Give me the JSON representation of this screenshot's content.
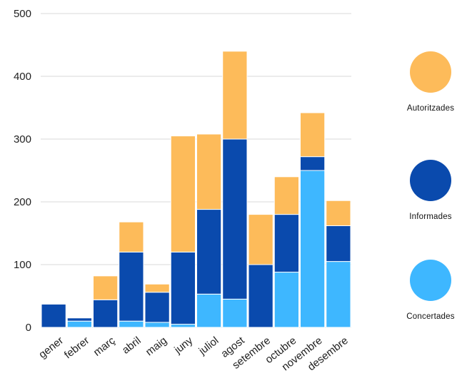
{
  "chart_data": {
    "type": "bar",
    "stacked": true,
    "title": "",
    "xlabel": "",
    "ylabel": "",
    "ylim": [
      0,
      500
    ],
    "yticks": [
      0,
      100,
      200,
      300,
      400,
      500
    ],
    "grid": true,
    "legend_position": "right",
    "categories": [
      "gener",
      "febrer",
      "març",
      "abril",
      "maig",
      "juny",
      "juliol",
      "agost",
      "setembre",
      "octubre",
      "novembre",
      "desembre"
    ],
    "series": [
      {
        "name": "Concertades",
        "color": "#3eb7ff",
        "values": [
          0,
          10,
          0,
          10,
          8,
          5,
          53,
          45,
          0,
          88,
          250,
          105
        ]
      },
      {
        "name": "Informades",
        "color": "#0a4aad",
        "values": [
          37,
          5,
          44,
          110,
          48,
          115,
          135,
          255,
          100,
          92,
          22,
          57
        ]
      },
      {
        "name": "Autoritzades",
        "color": "#fdbb5a",
        "values": [
          0,
          0,
          38,
          48,
          13,
          185,
          120,
          140,
          80,
          60,
          70,
          40
        ]
      }
    ]
  }
}
